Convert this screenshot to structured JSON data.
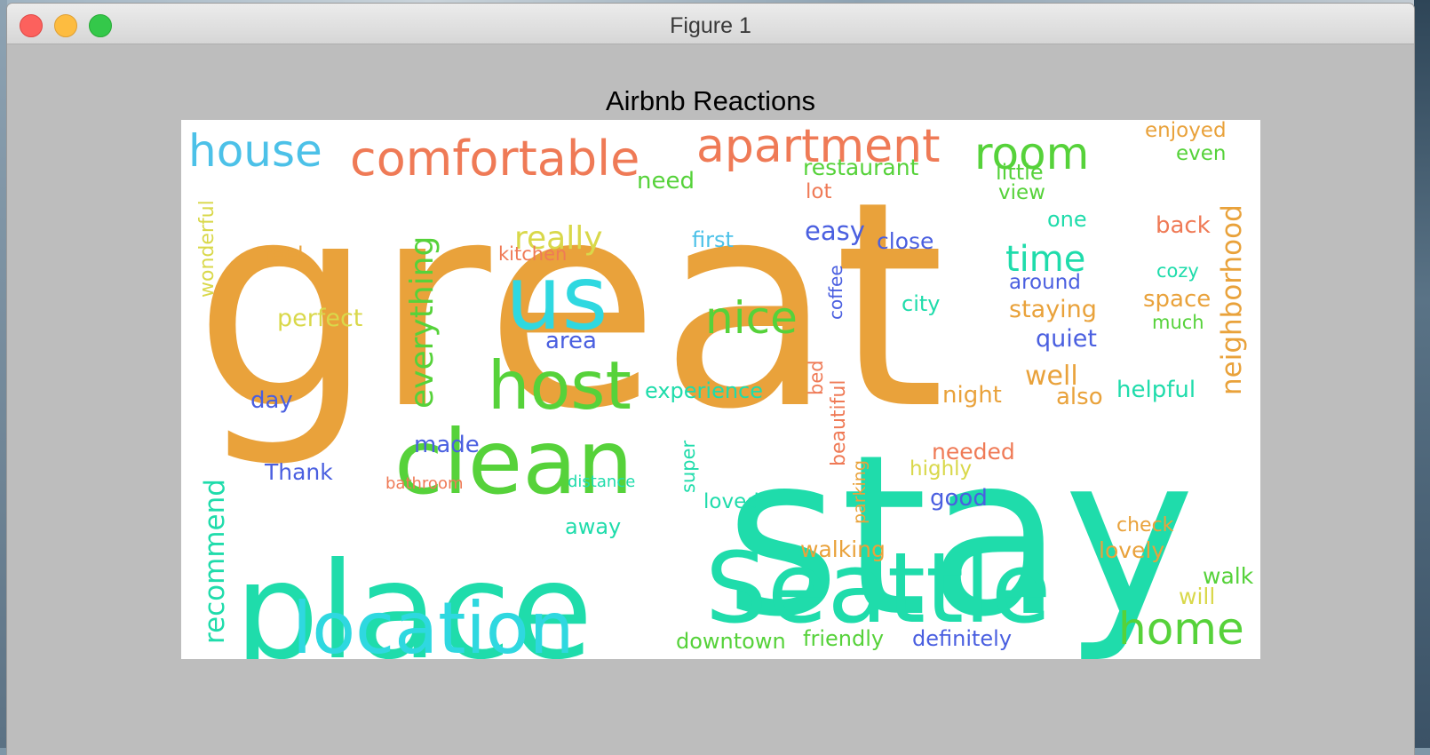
{
  "window": {
    "title": "Figure 1"
  },
  "figure": {
    "title": "Airbnb Reactions"
  },
  "colors": {
    "orange": "#e9a23b",
    "teal": "#1fdcab",
    "cyan": "#2fd8e0",
    "green": "#56d23a",
    "coral": "#ef7a56",
    "blue": "#4a5fe0",
    "yellow": "#d9d84a",
    "sky": "#4cc1e8"
  },
  "wordcloud": {
    "words": [
      {
        "text": "great",
        "color": "orange"
      },
      {
        "text": "stay",
        "color": "teal"
      },
      {
        "text": "place",
        "color": "teal"
      },
      {
        "text": "Seattle",
        "color": "teal"
      },
      {
        "text": "clean",
        "color": "green"
      },
      {
        "text": "us",
        "color": "cyan"
      },
      {
        "text": "location",
        "color": "cyan"
      },
      {
        "text": "host",
        "color": "green"
      },
      {
        "text": "comfortable",
        "color": "coral"
      },
      {
        "text": "apartment",
        "color": "coral"
      },
      {
        "text": "house",
        "color": "sky"
      },
      {
        "text": "room",
        "color": "green"
      },
      {
        "text": "home",
        "color": "green"
      },
      {
        "text": "nice",
        "color": "green"
      },
      {
        "text": "everything",
        "color": "green"
      },
      {
        "text": "neighborhood",
        "color": "orange"
      },
      {
        "text": "recommend",
        "color": "teal"
      },
      {
        "text": "time",
        "color": "teal"
      },
      {
        "text": "really",
        "color": "yellow"
      },
      {
        "text": "restaurant",
        "color": "green"
      },
      {
        "text": "lovely",
        "color": "orange"
      },
      {
        "text": "walking",
        "color": "orange"
      },
      {
        "text": "downtown",
        "color": "green"
      },
      {
        "text": "friendly",
        "color": "green"
      },
      {
        "text": "definitely",
        "color": "blue"
      },
      {
        "text": "beautiful",
        "color": "coral"
      },
      {
        "text": "experience",
        "color": "teal"
      },
      {
        "text": "perfect",
        "color": "yellow"
      },
      {
        "text": "wonderful",
        "color": "yellow"
      },
      {
        "text": "staying",
        "color": "orange"
      },
      {
        "text": "helpful",
        "color": "teal"
      },
      {
        "text": "well",
        "color": "orange"
      },
      {
        "text": "easy",
        "color": "blue"
      },
      {
        "text": "close",
        "color": "blue"
      },
      {
        "text": "first",
        "color": "sky"
      },
      {
        "text": "feel",
        "color": "orange"
      },
      {
        "text": "kitchen",
        "color": "coral"
      },
      {
        "text": "need",
        "color": "green"
      },
      {
        "text": "lot",
        "color": "coral"
      },
      {
        "text": "little",
        "color": "green"
      },
      {
        "text": "view",
        "color": "green"
      },
      {
        "text": "one",
        "color": "teal"
      },
      {
        "text": "back",
        "color": "coral"
      },
      {
        "text": "enjoyed",
        "color": "orange"
      },
      {
        "text": "even",
        "color": "green"
      },
      {
        "text": "around",
        "color": "blue"
      },
      {
        "text": "quiet",
        "color": "blue"
      },
      {
        "text": "space",
        "color": "orange"
      },
      {
        "text": "city",
        "color": "teal"
      },
      {
        "text": "coffee",
        "color": "blue"
      },
      {
        "text": "area",
        "color": "blue"
      },
      {
        "text": "night",
        "color": "orange"
      },
      {
        "text": "also",
        "color": "orange"
      },
      {
        "text": "day",
        "color": "blue"
      },
      {
        "text": "made",
        "color": "blue"
      },
      {
        "text": "Thank",
        "color": "blue"
      },
      {
        "text": "needed",
        "color": "coral"
      },
      {
        "text": "highly",
        "color": "yellow"
      },
      {
        "text": "good",
        "color": "blue"
      },
      {
        "text": "walk",
        "color": "green"
      },
      {
        "text": "will",
        "color": "yellow"
      },
      {
        "text": "loved",
        "color": "teal"
      },
      {
        "text": "away",
        "color": "teal"
      },
      {
        "text": "super",
        "color": "teal"
      },
      {
        "text": "bed",
        "color": "coral"
      },
      {
        "text": "parking",
        "color": "orange"
      },
      {
        "text": "check",
        "color": "orange"
      },
      {
        "text": "cozy",
        "color": "teal"
      },
      {
        "text": "much",
        "color": "green"
      },
      {
        "text": "bathroom",
        "color": "coral"
      },
      {
        "text": "distance",
        "color": "teal"
      }
    ]
  }
}
